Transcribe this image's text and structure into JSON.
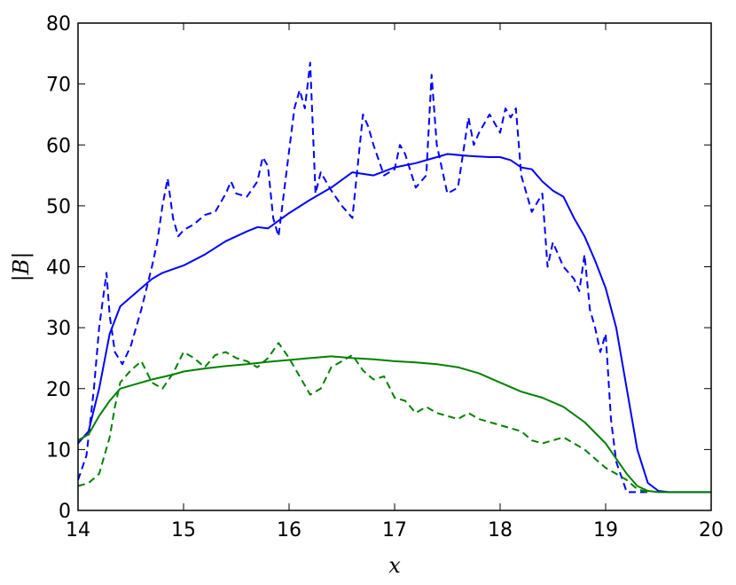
{
  "chart_data": {
    "type": "line",
    "title": "",
    "xlabel": "x",
    "ylabel": "|B|",
    "xlim": [
      14,
      20
    ],
    "ylim": [
      0,
      80
    ],
    "xticks": [
      14,
      15,
      16,
      17,
      18,
      19,
      20
    ],
    "yticks": [
      0,
      10,
      20,
      30,
      40,
      50,
      60,
      70,
      80
    ],
    "grid": false,
    "legend": "none",
    "colors": {
      "blue": "#0000ff",
      "green": "#008000"
    },
    "series": [
      {
        "color": "#0000ff",
        "style": "solid",
        "x": [
          14.0,
          14.1,
          14.2,
          14.3,
          14.4,
          14.5,
          14.6,
          14.7,
          14.8,
          14.9,
          15.0,
          15.2,
          15.4,
          15.6,
          15.7,
          15.8,
          16.0,
          16.2,
          16.4,
          16.6,
          16.8,
          17.0,
          17.2,
          17.4,
          17.5,
          17.7,
          17.9,
          18.0,
          18.1,
          18.2,
          18.3,
          18.4,
          18.5,
          18.6,
          18.7,
          18.8,
          18.9,
          19.0,
          19.1,
          19.2,
          19.3,
          19.4,
          19.5,
          19.6,
          19.8,
          20.0
        ],
        "y": [
          11.0,
          13.0,
          20.0,
          29.0,
          33.5,
          35.0,
          36.5,
          38.0,
          39.0,
          39.6,
          40.2,
          42.0,
          44.2,
          45.8,
          46.5,
          46.3,
          48.8,
          51.0,
          53.0,
          55.5,
          55.0,
          56.3,
          57.0,
          58.0,
          58.5,
          58.2,
          58.0,
          58.0,
          57.5,
          56.3,
          56.0,
          54.0,
          52.5,
          51.5,
          48.0,
          45.0,
          41.0,
          36.5,
          30.0,
          20.0,
          10.0,
          4.5,
          3.2,
          3.0,
          3.0,
          3.0
        ]
      },
      {
        "color": "#0000ff",
        "style": "dashed",
        "x": [
          14.0,
          14.08,
          14.15,
          14.2,
          14.27,
          14.3,
          14.35,
          14.42,
          14.5,
          14.6,
          14.7,
          14.75,
          14.8,
          14.85,
          14.9,
          14.95,
          15.0,
          15.1,
          15.2,
          15.3,
          15.4,
          15.45,
          15.5,
          15.6,
          15.7,
          15.75,
          15.8,
          15.85,
          15.9,
          16.0,
          16.05,
          16.1,
          16.15,
          16.2,
          16.25,
          16.3,
          16.4,
          16.5,
          16.55,
          16.6,
          16.7,
          16.75,
          16.8,
          16.9,
          17.0,
          17.05,
          17.1,
          17.2,
          17.3,
          17.35,
          17.4,
          17.5,
          17.6,
          17.7,
          17.75,
          17.8,
          17.9,
          18.0,
          18.05,
          18.1,
          18.15,
          18.2,
          18.25,
          18.3,
          18.4,
          18.45,
          18.5,
          18.6,
          18.7,
          18.75,
          18.8,
          18.85,
          18.9,
          18.95,
          19.0,
          19.05,
          19.1,
          19.2,
          19.3,
          19.4
        ],
        "y": [
          5.0,
          9.0,
          20.0,
          30.0,
          39.0,
          32.0,
          26.0,
          24.0,
          27.0,
          33.0,
          40.0,
          44.0,
          50.0,
          54.5,
          48.0,
          45.0,
          46.0,
          47.0,
          48.5,
          49.0,
          52.0,
          54.0,
          52.0,
          51.5,
          54.0,
          58.0,
          56.5,
          48.0,
          45.0,
          59.0,
          66.0,
          69.0,
          66.0,
          73.5,
          52.0,
          55.5,
          52.5,
          50.0,
          49.0,
          48.0,
          65.0,
          63.0,
          60.0,
          55.0,
          56.0,
          60.0,
          58.5,
          53.0,
          55.0,
          71.5,
          60.0,
          52.0,
          53.0,
          64.5,
          60.0,
          62.0,
          65.0,
          62.0,
          66.0,
          64.5,
          66.0,
          55.0,
          52.0,
          49.0,
          52.0,
          40.0,
          44.0,
          40.0,
          38.0,
          36.0,
          42.0,
          33.0,
          30.0,
          26.0,
          29.0,
          15.0,
          8.0,
          3.0,
          3.0,
          3.0
        ]
      },
      {
        "color": "#008000",
        "style": "solid",
        "x": [
          14.0,
          14.1,
          14.2,
          14.3,
          14.4,
          14.5,
          14.7,
          14.9,
          15.0,
          15.2,
          15.4,
          15.6,
          15.8,
          16.0,
          16.2,
          16.4,
          16.6,
          16.8,
          17.0,
          17.2,
          17.4,
          17.6,
          17.8,
          18.0,
          18.2,
          18.4,
          18.6,
          18.8,
          19.0,
          19.1,
          19.2,
          19.3,
          19.4,
          19.5,
          19.6,
          19.8,
          20.0
        ],
        "y": [
          11.5,
          12.5,
          15.5,
          18.0,
          20.0,
          20.5,
          21.5,
          22.3,
          22.8,
          23.3,
          23.7,
          24.0,
          24.4,
          24.7,
          25.0,
          25.3,
          25.0,
          24.8,
          24.5,
          24.3,
          24.0,
          23.5,
          22.5,
          21.0,
          19.5,
          18.5,
          17.0,
          14.5,
          11.0,
          8.5,
          6.0,
          4.0,
          3.2,
          3.0,
          3.0,
          3.0,
          3.0
        ]
      },
      {
        "color": "#008000",
        "style": "dashed",
        "x": [
          14.0,
          14.1,
          14.2,
          14.3,
          14.35,
          14.4,
          14.5,
          14.6,
          14.7,
          14.8,
          14.9,
          15.0,
          15.1,
          15.2,
          15.3,
          15.4,
          15.5,
          15.6,
          15.7,
          15.8,
          15.9,
          16.0,
          16.1,
          16.2,
          16.3,
          16.4,
          16.5,
          16.6,
          16.7,
          16.8,
          16.9,
          17.0,
          17.1,
          17.2,
          17.3,
          17.4,
          17.5,
          17.6,
          17.7,
          17.8,
          17.9,
          18.0,
          18.1,
          18.2,
          18.3,
          18.4,
          18.5,
          18.6,
          18.7,
          18.8,
          18.9,
          19.0,
          19.1,
          19.2,
          19.3,
          19.4
        ],
        "y": [
          4.0,
          4.5,
          6.0,
          12.0,
          17.0,
          21.0,
          23.0,
          24.5,
          21.0,
          20.0,
          22.5,
          26.0,
          25.0,
          23.5,
          25.5,
          26.0,
          25.0,
          24.5,
          23.5,
          25.0,
          27.5,
          25.0,
          22.0,
          19.0,
          20.0,
          23.5,
          24.5,
          25.5,
          23.0,
          21.5,
          22.0,
          18.5,
          18.0,
          16.0,
          17.0,
          16.0,
          15.5,
          15.0,
          16.0,
          15.0,
          14.5,
          14.0,
          13.5,
          13.0,
          11.5,
          11.0,
          11.5,
          12.0,
          11.0,
          10.0,
          8.5,
          7.0,
          6.0,
          5.0,
          3.5,
          3.0
        ]
      }
    ]
  }
}
